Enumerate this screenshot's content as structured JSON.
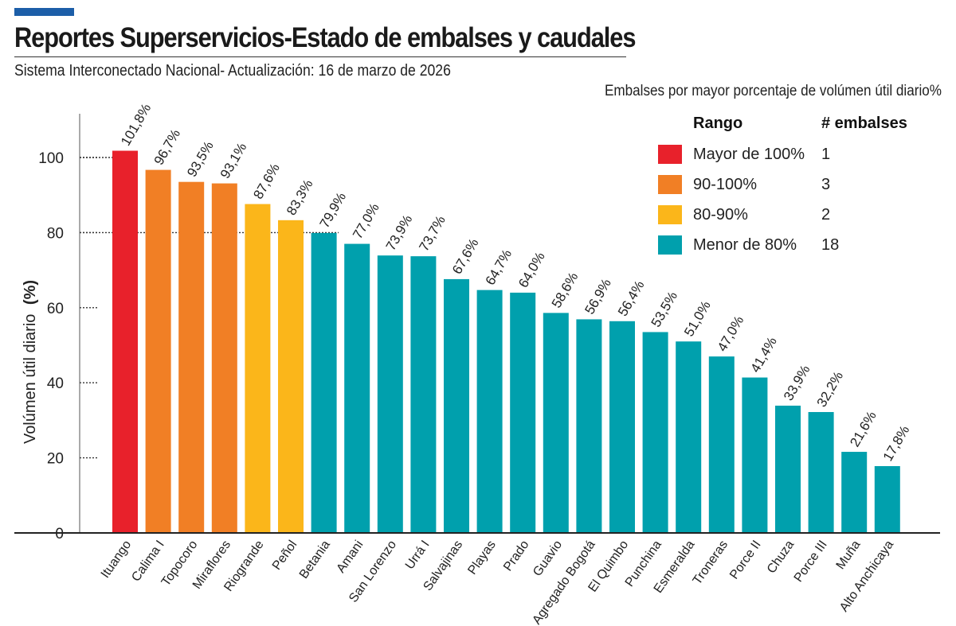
{
  "header": {
    "title": "Reportes Superservicios-Estado de embalses y caudales",
    "subtitle": "Sistema Interconectado Nacional- Actualización: 16 de marzo de 2026"
  },
  "legend": {
    "title": "Embalses por mayor porcentaje de volúmen útil diario%",
    "col_rango": "Rango",
    "col_count": "# embalses",
    "rows": [
      {
        "label": "Mayor de 100%",
        "count": "1",
        "color": "#e8212b"
      },
      {
        "label": "90-100%",
        "count": "3",
        "color": "#f17f25"
      },
      {
        "label": "80-90%",
        "count": "2",
        "color": "#fbb61a"
      },
      {
        "label": "Menor de 80%",
        "count": "18",
        "color": "#00a0ad"
      }
    ]
  },
  "chart_data": {
    "type": "bar",
    "ylabel": "Volúmen útil diario",
    "ylabel_unit": "(%)",
    "ylim": [
      0,
      110
    ],
    "yticks": [
      0,
      20,
      40,
      60,
      80,
      100
    ],
    "categories": [
      "Ituango",
      "Calima I",
      "Topocoro",
      "Miraflores",
      "Riogrande",
      "Peñol",
      "Betania",
      "Amani",
      "San Lorenzo",
      "Urrá I",
      "Salvajinas",
      "Playas",
      "Prado",
      "Guavio",
      "Agregado Bogotá",
      "El Quimbo",
      "Punchina",
      "Esmeralda",
      "Troneras",
      "Porce II",
      "Chuza",
      "Porce III",
      "Muña",
      "Alto Anchicaya"
    ],
    "values": [
      101.8,
      96.7,
      93.5,
      93.1,
      87.6,
      83.3,
      79.9,
      77.0,
      73.9,
      73.7,
      67.6,
      64.7,
      64.0,
      58.6,
      56.9,
      56.4,
      53.5,
      51.0,
      47.0,
      41.4,
      33.9,
      32.2,
      21.6,
      17.8
    ],
    "labels": [
      "101,8%",
      "96,7%",
      "93,5%",
      "93,1%",
      "87,6%",
      "83,3%",
      "79,9%",
      "77,0%",
      "73,9%",
      "73,7%",
      "67,6%",
      "64,7%",
      "64,0%",
      "58,6%",
      "56,9%",
      "56,4%",
      "53,5%",
      "51,0%",
      "47,0%",
      "41,4%",
      "33,9%",
      "32,2%",
      "21,6%",
      "17,8%"
    ],
    "reference_lines": [
      100,
      80
    ],
    "grid": false,
    "colors": {
      "above_100": "#e8212b",
      "range_90_100": "#f17f25",
      "range_80_90": "#fbb61a",
      "below_80": "#00a0ad"
    }
  }
}
